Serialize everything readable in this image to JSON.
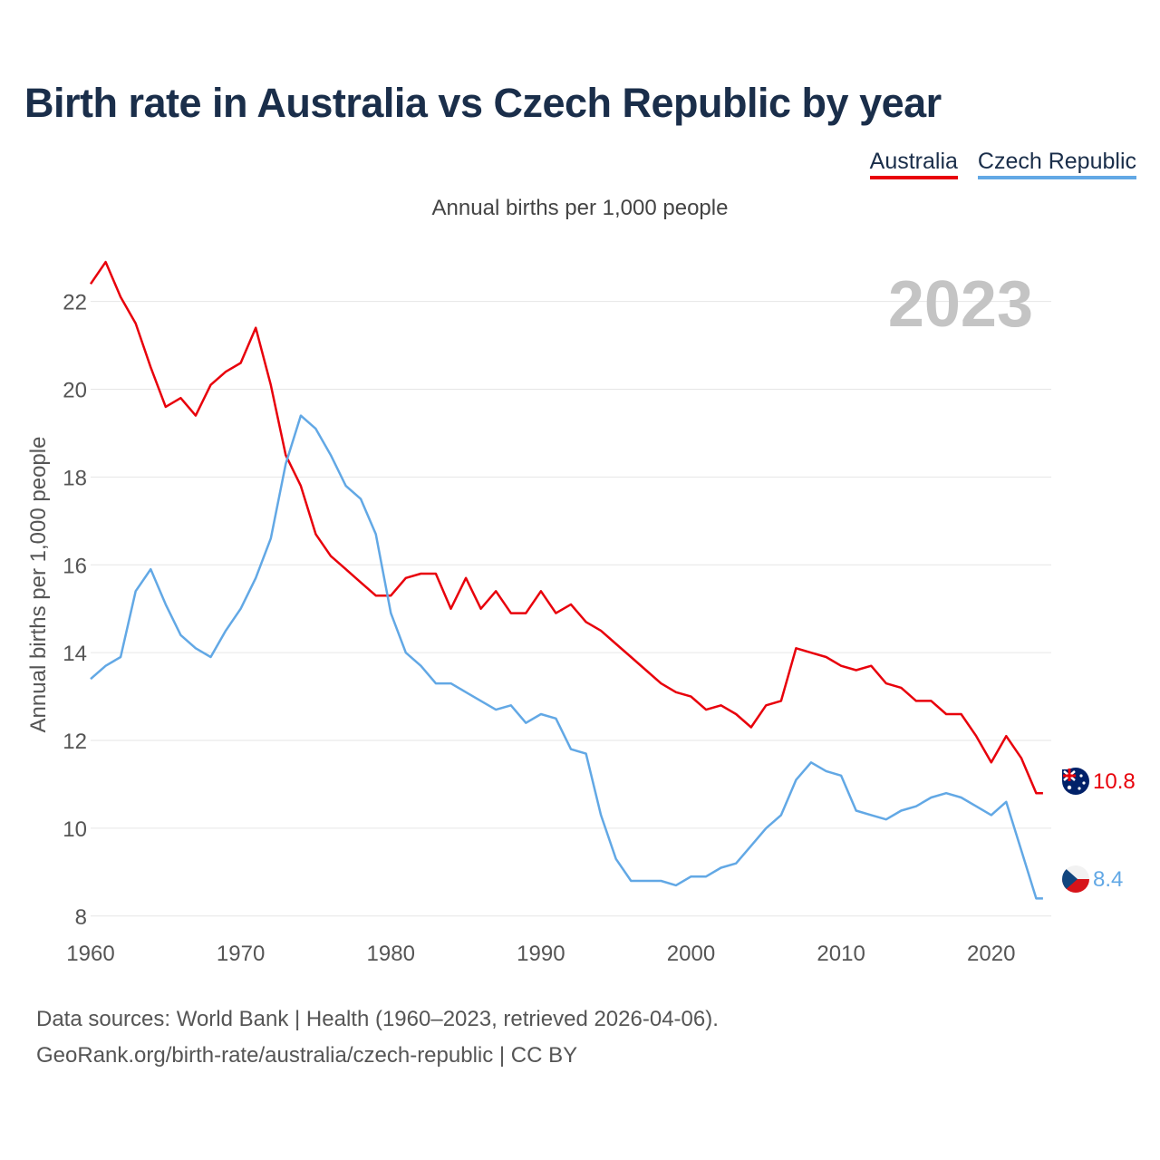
{
  "title": "Birth rate in Australia vs Czech Republic by year",
  "subtitle": "Annual births per 1,000 people",
  "legend": [
    {
      "label": "Australia",
      "color": "#e8000b"
    },
    {
      "label": "Czech Republic",
      "color": "#62a8e5"
    }
  ],
  "year_label": "2023",
  "end_labels": {
    "australia": "10.8",
    "czech": "8.4"
  },
  "source": {
    "line1": "Data sources: World Bank | Health (1960–2023, retrieved 2026-04-06).",
    "line2": "GeoRank.org/birth-rate/australia/czech-republic | CC BY"
  },
  "chart_data": {
    "type": "line",
    "title": "Birth rate in Australia vs Czech Republic by year",
    "xlabel": "",
    "ylabel": "Annual births per 1,000 people",
    "xlim": [
      1960,
      2024
    ],
    "ylim": [
      7.5,
      23.5
    ],
    "xticks": [
      1960,
      1970,
      1980,
      1990,
      2000,
      2010,
      2020
    ],
    "yticks": [
      8,
      10,
      12,
      14,
      16,
      18,
      20,
      22
    ],
    "grid": true,
    "legend": "top-right",
    "x": [
      1960,
      1961,
      1962,
      1963,
      1964,
      1965,
      1966,
      1967,
      1968,
      1969,
      1970,
      1971,
      1972,
      1973,
      1974,
      1975,
      1976,
      1977,
      1978,
      1979,
      1980,
      1981,
      1982,
      1983,
      1984,
      1985,
      1986,
      1987,
      1988,
      1989,
      1990,
      1991,
      1992,
      1993,
      1994,
      1995,
      1996,
      1997,
      1998,
      1999,
      2000,
      2001,
      2002,
      2003,
      2004,
      2005,
      2006,
      2007,
      2008,
      2009,
      2010,
      2011,
      2012,
      2013,
      2014,
      2015,
      2016,
      2017,
      2018,
      2019,
      2020,
      2021,
      2022,
      2023
    ],
    "series": [
      {
        "name": "Australia",
        "color": "#e8000b",
        "values": [
          22.4,
          22.9,
          22.1,
          21.5,
          20.5,
          19.6,
          19.8,
          19.4,
          20.1,
          20.4,
          20.6,
          21.4,
          20.1,
          18.5,
          17.8,
          16.7,
          16.2,
          15.9,
          15.6,
          15.3,
          15.3,
          15.7,
          15.8,
          15.8,
          15.0,
          15.7,
          15.0,
          15.4,
          14.9,
          14.9,
          15.4,
          14.9,
          15.1,
          14.7,
          14.5,
          14.2,
          13.9,
          13.6,
          13.3,
          13.1,
          13.0,
          12.7,
          12.8,
          12.6,
          12.3,
          12.8,
          12.9,
          14.1,
          14.0,
          13.9,
          13.7,
          13.6,
          13.7,
          13.3,
          13.2,
          12.9,
          12.9,
          12.6,
          12.6,
          12.1,
          11.5,
          12.1,
          11.6,
          10.8
        ]
      },
      {
        "name": "Czech Republic",
        "color": "#62a8e5",
        "values": [
          13.4,
          13.7,
          13.9,
          15.4,
          15.9,
          15.1,
          14.4,
          14.1,
          13.9,
          14.5,
          15.0,
          15.7,
          16.6,
          18.3,
          19.4,
          19.1,
          18.5,
          17.8,
          17.5,
          16.7,
          14.9,
          14.0,
          13.7,
          13.3,
          13.3,
          13.1,
          12.9,
          12.7,
          12.8,
          12.4,
          12.6,
          12.5,
          11.8,
          11.7,
          10.3,
          9.3,
          8.8,
          8.8,
          8.8,
          8.7,
          8.9,
          8.9,
          9.1,
          9.2,
          9.6,
          10.0,
          10.3,
          11.1,
          11.5,
          11.3,
          11.2,
          10.4,
          10.3,
          10.2,
          10.4,
          10.5,
          10.7,
          10.8,
          10.7,
          10.5,
          10.3,
          10.6,
          9.5,
          8.4
        ]
      }
    ]
  }
}
